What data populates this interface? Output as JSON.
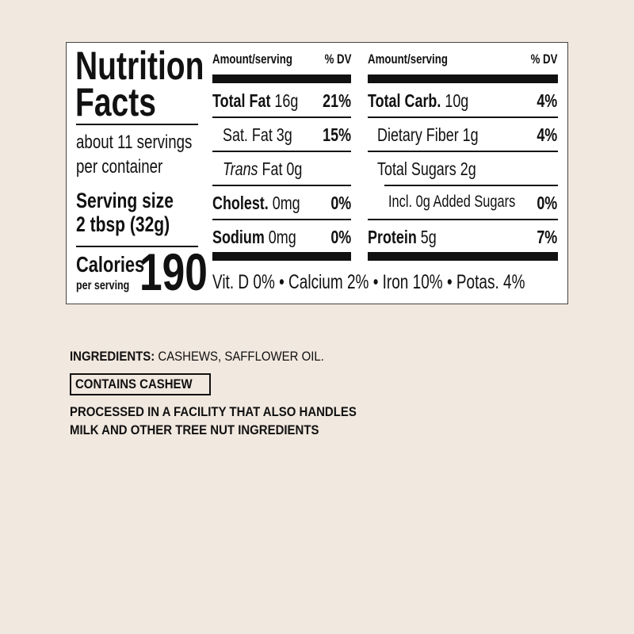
{
  "panel": {
    "title_line1": "Nutrition",
    "title_line2": "Facts",
    "servings_line1": "about 11 servings",
    "servings_line2": "per container",
    "serving_size_label": "Serving size",
    "serving_size_value": "2 tbsp (32g)",
    "calories_label": "Calories",
    "calories_sub": "per serving",
    "calories_value": "190",
    "header_amount": "Amount/serving",
    "header_dv": "% DV",
    "left_rows": [
      {
        "name": "Total Fat",
        "amount": "16g",
        "dv": "21%",
        "bold": true
      },
      {
        "name": "Sat. Fat",
        "amount": "3g",
        "dv": "15%",
        "bold": false
      },
      {
        "name": "Trans",
        "name_rest": "Fat",
        "amount": "0g",
        "dv": "",
        "bold": false
      },
      {
        "name": "Cholest.",
        "amount": "0mg",
        "dv": "0%",
        "bold": true
      },
      {
        "name": "Sodium",
        "amount": "0mg",
        "dv": "0%",
        "bold": true
      }
    ],
    "right_rows": [
      {
        "name": "Total Carb.",
        "amount": "10g",
        "dv": "4%",
        "bold": true
      },
      {
        "name": "Dietary Fiber",
        "amount": "1g",
        "dv": "4%",
        "bold": false
      },
      {
        "name": "Total Sugars",
        "amount": "2g",
        "dv": "",
        "bold": false
      },
      {
        "name": "Incl. 0g Added Sugars",
        "amount": "",
        "dv": "0%",
        "bold": false
      },
      {
        "name": "Protein",
        "amount": "5g",
        "dv": "7%",
        "bold": true
      }
    ],
    "vitamins": "Vit. D 0% • Calcium 2% • Iron 10% • Potas. 4%"
  },
  "ingredients": {
    "label": "INGREDIENTS:",
    "text": "CASHEWS, SAFFLOWER OIL.",
    "allergen": "CONTAINS CASHEW",
    "facility_line1": "PROCESSED IN A FACILITY THAT ALSO HANDLES",
    "facility_line2": "MILK AND OTHER TREE NUT INGREDIENTS"
  }
}
